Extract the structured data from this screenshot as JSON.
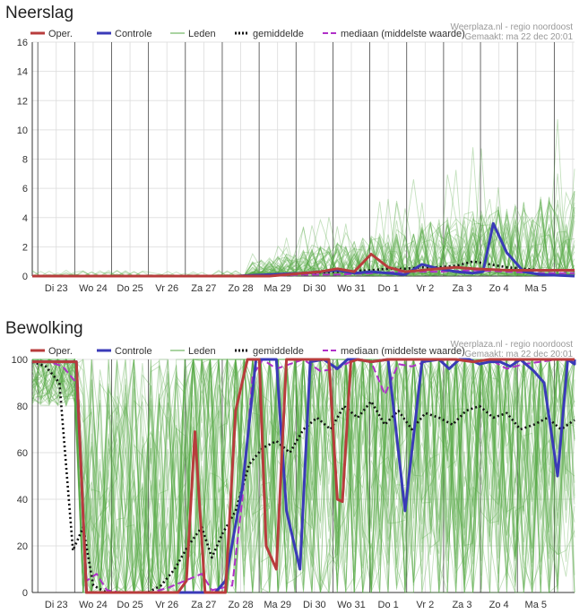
{
  "legend": {
    "oper": "Oper.",
    "controle": "Controle",
    "leden": "Leden",
    "gemiddelde": "gemiddelde",
    "mediaan": "mediaan (middelste waarde)"
  },
  "credit": {
    "line1": "Weerplaza.nl - regio noordoost",
    "line2": "Gemaakt: ma 22 dec 20:01"
  },
  "colors": {
    "oper": "#b83c3c",
    "controle": "#3a3ab8",
    "leden": "#55aa44",
    "gemiddelde": "#111111",
    "mediaan": "#b030c8"
  },
  "chart_data": [
    {
      "type": "line",
      "title": "Neerslag",
      "day_labels": [
        "Di 23",
        "Wo 24",
        "Do 25",
        "Vr 26",
        "Za 27",
        "Zo 28",
        "Ma 29",
        "Di 30",
        "Wo 31",
        "Do 1",
        "Vr 2",
        "Za 3",
        "Zo 4",
        "Ma 5"
      ],
      "y_ticks": [
        "0",
        "2",
        "4",
        "6",
        "8",
        "10",
        "12",
        "14",
        "16"
      ],
      "ylim": [
        0,
        16
      ],
      "x_range": [
        0,
        16
      ],
      "series": [
        {
          "key": "oper",
          "name": "Oper.",
          "x": [
            0,
            1,
            2,
            3,
            4,
            5,
            6,
            7,
            8,
            8.5,
            9,
            9.25,
            9.5,
            10,
            10.5,
            11,
            11.5,
            12,
            12.5,
            13,
            14,
            15,
            16
          ],
          "values": [
            0,
            0,
            0,
            0,
            0,
            0,
            0,
            0,
            0.2,
            0.3,
            0.5,
            0.4,
            0.3,
            1.5,
            0.6,
            0.3,
            0.4,
            0.5,
            0.6,
            0.5,
            0.4,
            0.4,
            0.4
          ]
        },
        {
          "key": "controle",
          "name": "Controle",
          "x": [
            0,
            1,
            2,
            3,
            4,
            5,
            6,
            7,
            8,
            8.5,
            9,
            9.5,
            10,
            10.5,
            11,
            11.5,
            12,
            12.5,
            13,
            13.3,
            13.6,
            14,
            14.5,
            15,
            16
          ],
          "values": [
            0,
            0,
            0,
            0,
            0,
            0,
            0,
            0.1,
            0.2,
            0.3,
            0.4,
            0.2,
            0.3,
            0.2,
            0.1,
            0.8,
            0.5,
            0.3,
            0.2,
            0.3,
            3.6,
            1.6,
            0.3,
            0.1,
            0
          ]
        },
        {
          "key": "gemiddelde",
          "name": "gemiddelde",
          "x": [
            0,
            1,
            2,
            3,
            4,
            5,
            6,
            7,
            8,
            9,
            10,
            10.5,
            11,
            11.5,
            12,
            12.5,
            13,
            13.5,
            14,
            14.5,
            15,
            16
          ],
          "values": [
            0,
            0,
            0,
            0,
            0,
            0,
            0,
            0.1,
            0.2,
            0.3,
            0.4,
            0.5,
            0.5,
            0.6,
            0.6,
            0.7,
            1.0,
            0.8,
            0.6,
            0.5,
            0.4,
            0.4
          ]
        },
        {
          "key": "mediaan",
          "name": "mediaan (middelste waarde)",
          "x": [
            0,
            1,
            2,
            3,
            4,
            5,
            6,
            7,
            8,
            9,
            10,
            11,
            12,
            13,
            14,
            15,
            16
          ],
          "values": [
            0,
            0,
            0,
            0,
            0,
            0,
            0,
            0,
            0.1,
            0.1,
            0.2,
            0.3,
            0.3,
            0.4,
            0.3,
            0.2,
            0.2
          ]
        }
      ]
    },
    {
      "type": "line",
      "title": "Bewolking",
      "day_labels": [
        "Di 23",
        "Wo 24",
        "Do 25",
        "Vr 26",
        "Za 27",
        "Zo 28",
        "Ma 29",
        "Di 30",
        "Wo 31",
        "Do 1",
        "Vr 2",
        "Za 3",
        "Zo 4",
        "Ma 5"
      ],
      "y_ticks": [
        "0",
        "20",
        "40",
        "60",
        "80",
        "100"
      ],
      "ylim": [
        0,
        100
      ],
      "x_range": [
        0,
        16
      ],
      "series": [
        {
          "key": "oper",
          "name": "Oper.",
          "x": [
            0,
            0.5,
            0.9,
            1.3,
            1.6,
            2,
            2.5,
            3,
            3.5,
            3.8,
            4.1,
            4.3,
            4.55,
            4.8,
            5.1,
            5.4,
            5.7,
            6,
            6.35,
            6.7,
            6.9,
            7.2,
            7.5,
            7.8,
            8.2,
            8.5,
            8.75,
            9,
            9.15,
            9.4,
            9.6,
            10,
            10.5,
            11,
            11.5,
            12,
            12.5,
            13,
            13.5,
            14,
            14.5,
            15,
            15.5,
            16
          ],
          "values": [
            99,
            99,
            99,
            99,
            0,
            0,
            0,
            0,
            0,
            0,
            0,
            0,
            5,
            69,
            0,
            0,
            0,
            78,
            100,
            100,
            20,
            10,
            100,
            100,
            100,
            100,
            100,
            40,
            39,
            99,
            100,
            99,
            100,
            100,
            100,
            100,
            100,
            99,
            100,
            100,
            100,
            100,
            100,
            100
          ]
        },
        {
          "key": "controle",
          "name": "Controle",
          "x": [
            0,
            0.5,
            0.9,
            1.3,
            1.6,
            2,
            2.5,
            3,
            3.5,
            4,
            4.5,
            4.8,
            5.1,
            5.4,
            5.7,
            6.2,
            6.6,
            6.9,
            7.2,
            7.5,
            7.9,
            8.2,
            8.6,
            9,
            9.3,
            9.6,
            10,
            10.5,
            11,
            11.5,
            12,
            12.3,
            12.6,
            12.9,
            13.2,
            13.5,
            13.8,
            14.1,
            14.4,
            14.8,
            15.1,
            15.5,
            15.8,
            16.1,
            16.3,
            16.5
          ],
          "values": [
            99,
            99,
            99,
            99,
            0,
            0,
            0,
            0,
            0,
            0,
            0,
            0,
            0,
            0,
            5,
            45,
            100,
            100,
            100,
            35,
            10,
            99,
            100,
            96,
            100,
            100,
            99,
            100,
            35,
            99,
            100,
            96,
            100,
            100,
            98,
            99,
            99,
            97,
            100,
            95,
            90,
            50,
            100,
            98,
            99,
            100
          ]
        },
        {
          "key": "gemiddelde",
          "name": "gemiddelde",
          "x": [
            0,
            0.4,
            0.8,
            1.2,
            1.5,
            1.8,
            2.2,
            2.6,
            3,
            3.4,
            3.8,
            4.2,
            4.6,
            5,
            5.3,
            5.6,
            6,
            6.4,
            6.8,
            7.2,
            7.6,
            8,
            8.4,
            8.8,
            9.2,
            9.6,
            10,
            10.4,
            10.8,
            11.2,
            11.6,
            12,
            12.4,
            12.8,
            13.2,
            13.6,
            14,
            14.4,
            14.8,
            15.2,
            15.6,
            16
          ],
          "values": [
            99,
            97,
            90,
            18,
            28,
            3,
            0,
            0,
            0,
            0,
            3,
            10,
            20,
            28,
            15,
            25,
            35,
            55,
            62,
            65,
            60,
            70,
            75,
            70,
            80,
            75,
            82,
            72,
            78,
            70,
            77,
            75,
            72,
            78,
            80,
            75,
            77,
            70,
            72,
            75,
            70,
            74
          ]
        },
        {
          "key": "mediaan",
          "name": "mediaan (middelste waarde)",
          "x": [
            0,
            0.5,
            0.9,
            1.3,
            1.6,
            1.9,
            2.2,
            2.6,
            3,
            3.5,
            4,
            4.5,
            5,
            5.3,
            5.6,
            5.9,
            6.2,
            6.5,
            6.8,
            7.2,
            7.6,
            8,
            8.5,
            9,
            9.5,
            10,
            10.4,
            10.8,
            11.2,
            11.6,
            12,
            12.5,
            13,
            13.5,
            14,
            14.5,
            15,
            15.5,
            16
          ],
          "values": [
            99,
            99,
            97,
            90,
            5,
            8,
            1,
            0,
            0,
            0,
            2,
            5,
            8,
            1,
            2,
            3,
            40,
            93,
            100,
            96,
            98,
            100,
            95,
            96,
            100,
            99,
            85,
            98,
            97,
            99,
            100,
            100,
            99,
            100,
            96,
            98,
            99,
            100,
            99
          ]
        }
      ]
    }
  ]
}
